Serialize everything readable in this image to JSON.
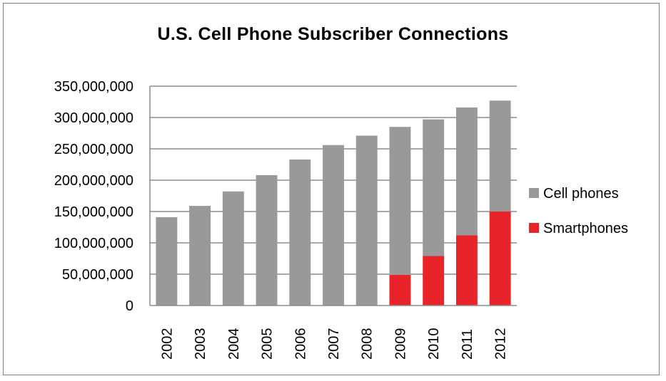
{
  "chart_data": {
    "type": "bar",
    "stacked": true,
    "title": "U.S. Cell Phone Subscriber Connections",
    "xlabel": "",
    "ylabel": "",
    "categories": [
      "2002",
      "2003",
      "2004",
      "2005",
      "2006",
      "2007",
      "2008",
      "2009",
      "2010",
      "2011",
      "2012"
    ],
    "series": [
      {
        "name": "Smartphones",
        "color": "#e8232a",
        "values": [
          0,
          0,
          0,
          0,
          0,
          0,
          0,
          49000000,
          79000000,
          112000000,
          150000000
        ]
      },
      {
        "name": "Cell phones",
        "color": "#999999",
        "values": [
          141000000,
          159000000,
          182000000,
          208000000,
          233000000,
          256000000,
          271000000,
          236000000,
          218000000,
          204000000,
          177000000
        ]
      }
    ],
    "ylim": [
      0,
      350000000
    ],
    "yticks": [
      0,
      50000000,
      100000000,
      150000000,
      200000000,
      250000000,
      300000000,
      350000000
    ],
    "ytick_labels": [
      "0",
      "50,000,000",
      "100,000,000",
      "150,000,000",
      "200,000,000",
      "250,000,000",
      "300,000,000",
      "350,000,000"
    ],
    "grid": true,
    "legend_position": "right"
  }
}
